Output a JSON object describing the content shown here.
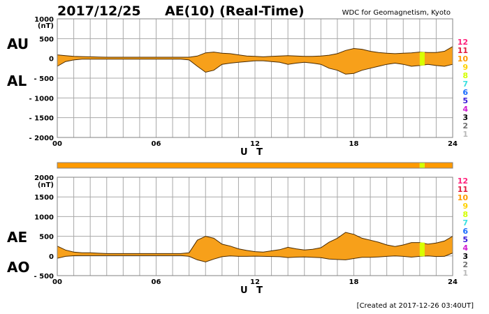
{
  "header": {
    "date": "2017/12/25",
    "title": "AE(10) (Real-Time)",
    "source": "WDC for Geomagnetism, Kyoto"
  },
  "footer": {
    "created": "[Created at 2017-12-26 03:40UT]"
  },
  "station_legend": [
    {
      "label": "12",
      "color": "#ff1f7a"
    },
    {
      "label": "11",
      "color": "#e0183c"
    },
    {
      "label": "10",
      "color": "#ff9a00"
    },
    {
      "label": "9",
      "color": "#ffd200"
    },
    {
      "label": "8",
      "color": "#d4ff00"
    },
    {
      "label": "7",
      "color": "#38e0e0"
    },
    {
      "label": "6",
      "color": "#1a6cff"
    },
    {
      "label": "5",
      "color": "#3a1ad6"
    },
    {
      "label": "4",
      "color": "#d01ad0"
    },
    {
      "label": "3",
      "color": "#000000"
    },
    {
      "label": "2",
      "color": "#707070"
    },
    {
      "label": "1",
      "color": "#b8b8b8"
    }
  ],
  "colors": {
    "fill": "#f7a01a",
    "alert": "#d8ff00",
    "outline": "#4a2a00",
    "grid": "#a8a8a8"
  },
  "chart_data": [
    {
      "type": "area",
      "panel": "AU/AL",
      "upper_label": "AU",
      "lower_label": "AL",
      "yunit": "(nT)",
      "ylim": [
        -2000,
        1000
      ],
      "yticks": [
        1000,
        500,
        0,
        -500,
        -1000,
        -1500,
        -2000
      ],
      "ytick_labels": [
        "1000",
        "500",
        "0",
        "- 500",
        "- 1000",
        "- 1500",
        "- 2000"
      ],
      "xlim": [
        0,
        24
      ],
      "xticks": [
        0,
        6,
        12,
        18,
        24
      ],
      "xtick_labels": [
        "00",
        "06",
        "12",
        "18",
        "24"
      ],
      "xlabel": "U T",
      "grid": true,
      "hours": [
        0,
        0.5,
        1,
        1.5,
        2,
        2.5,
        3,
        3.5,
        4,
        4.5,
        5,
        5.5,
        6,
        6.5,
        7,
        7.5,
        8,
        8.5,
        9,
        9.5,
        10,
        10.5,
        11,
        11.5,
        12,
        12.5,
        13,
        13.5,
        14,
        14.5,
        15,
        15.5,
        16,
        16.5,
        17,
        17.5,
        18,
        18.5,
        19,
        19.5,
        20,
        20.5,
        21,
        21.5,
        22,
        22.5,
        23,
        23.5,
        24
      ],
      "series": [
        {
          "name": "AU",
          "values": [
            90,
            70,
            50,
            45,
            40,
            35,
            30,
            30,
            30,
            30,
            30,
            30,
            30,
            30,
            30,
            30,
            30,
            60,
            140,
            160,
            130,
            120,
            90,
            60,
            50,
            40,
            50,
            60,
            70,
            60,
            50,
            50,
            60,
            80,
            120,
            200,
            250,
            230,
            180,
            150,
            130,
            120,
            130,
            140,
            160,
            150,
            150,
            180,
            300
          ]
        },
        {
          "name": "AL",
          "values": [
            -200,
            -80,
            -40,
            -20,
            -20,
            -20,
            -20,
            -20,
            -20,
            -20,
            -20,
            -20,
            -20,
            -20,
            -20,
            -20,
            -40,
            -200,
            -350,
            -300,
            -150,
            -120,
            -100,
            -80,
            -60,
            -60,
            -80,
            -100,
            -150,
            -120,
            -100,
            -120,
            -150,
            -250,
            -300,
            -400,
            -380,
            -300,
            -250,
            -200,
            -150,
            -120,
            -150,
            -200,
            -180,
            -150,
            -180,
            -200,
            -150
          ]
        }
      ]
    },
    {
      "type": "area",
      "panel": "AE/AO",
      "upper_label": "AE",
      "lower_label": "AO",
      "yunit": "(nT)",
      "ylim": [
        -500,
        2000
      ],
      "yticks": [
        2000,
        1500,
        1000,
        500,
        0,
        -500
      ],
      "ytick_labels": [
        "2000",
        "1500",
        "1000",
        "500",
        "0",
        "- 500"
      ],
      "xlim": [
        0,
        24
      ],
      "xticks": [
        0,
        6,
        12,
        18,
        24
      ],
      "xtick_labels": [
        "00",
        "06",
        "12",
        "18",
        "24"
      ],
      "xlabel": "U T",
      "grid": true,
      "hours": [
        0,
        0.5,
        1,
        1.5,
        2,
        2.5,
        3,
        3.5,
        4,
        4.5,
        5,
        5.5,
        6,
        6.5,
        7,
        7.5,
        8,
        8.5,
        9,
        9.5,
        10,
        10.5,
        11,
        11.5,
        12,
        12.5,
        13,
        13.5,
        14,
        14.5,
        15,
        15.5,
        16,
        16.5,
        17,
        17.5,
        18,
        18.5,
        19,
        19.5,
        20,
        20.5,
        21,
        21.5,
        22,
        22.5,
        23,
        23.5,
        24
      ],
      "series": [
        {
          "name": "AE",
          "values": [
            250,
            150,
            100,
            80,
            80,
            70,
            60,
            60,
            60,
            60,
            60,
            60,
            60,
            60,
            60,
            60,
            80,
            400,
            500,
            450,
            300,
            250,
            180,
            140,
            110,
            100,
            130,
            160,
            220,
            180,
            150,
            170,
            210,
            350,
            450,
            600,
            550,
            450,
            400,
            350,
            280,
            240,
            280,
            340,
            340,
            300,
            330,
            380,
            500
          ]
        },
        {
          "name": "AO",
          "values": [
            -60,
            -10,
            5,
            10,
            10,
            10,
            10,
            10,
            10,
            10,
            10,
            10,
            10,
            10,
            10,
            10,
            -10,
            -100,
            -150,
            -80,
            -20,
            0,
            -10,
            -10,
            -5,
            -10,
            -15,
            -20,
            -40,
            -30,
            -25,
            -35,
            -45,
            -80,
            -90,
            -100,
            -65,
            -35,
            -35,
            -25,
            -10,
            0,
            -10,
            -30,
            -10,
            0,
            -15,
            -10,
            75
          ]
        }
      ]
    }
  ],
  "status_bar": {
    "segments": [
      {
        "from": 0,
        "to": 22,
        "level": "10"
      },
      {
        "from": 22,
        "to": 22.3,
        "level": "8"
      },
      {
        "from": 22.3,
        "to": 24,
        "level": "10"
      }
    ]
  }
}
